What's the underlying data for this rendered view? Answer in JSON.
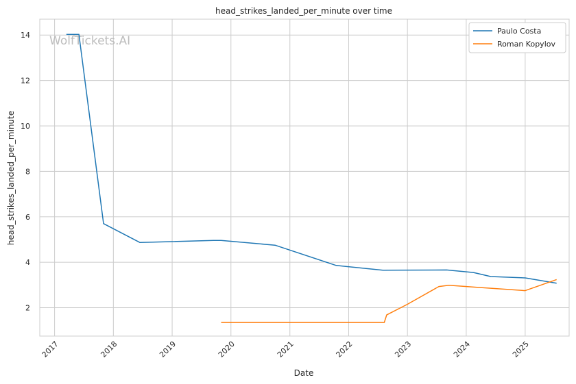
{
  "chart_data": {
    "type": "line",
    "title": "head_strikes_landed_per_minute over time",
    "xlabel": "Date",
    "ylabel": "head_strikes_landed_per_minute",
    "watermark": "WolfTickets.AI",
    "xlim": [
      "2016-10-01",
      "2025-10-01"
    ],
    "ylim": [
      0.75,
      14.7
    ],
    "x_ticks": [
      "2017-01-01",
      "2018-01-01",
      "2019-01-01",
      "2020-01-01",
      "2021-01-01",
      "2022-01-01",
      "2023-01-01",
      "2024-01-01",
      "2025-01-01"
    ],
    "x_tick_labels": [
      "2017",
      "2018",
      "2019",
      "2020",
      "2021",
      "2022",
      "2023",
      "2024",
      "2025"
    ],
    "y_ticks": [
      2,
      4,
      6,
      8,
      10,
      12,
      14
    ],
    "y_tick_labels": [
      "2",
      "4",
      "6",
      "8",
      "10",
      "12",
      "14"
    ],
    "grid": true,
    "legend_position": "top-right",
    "series": [
      {
        "name": "Paulo Costa",
        "color": "#1f77b4",
        "points": [
          {
            "x": "2017-03-15",
            "y": 14.03
          },
          {
            "x": "2017-06-01",
            "y": 14.03
          },
          {
            "x": "2017-11-01",
            "y": 5.7
          },
          {
            "x": "2018-06-15",
            "y": 4.87
          },
          {
            "x": "2019-09-15",
            "y": 4.96
          },
          {
            "x": "2019-11-01",
            "y": 4.96
          },
          {
            "x": "2020-10-01",
            "y": 4.75
          },
          {
            "x": "2021-10-15",
            "y": 3.86
          },
          {
            "x": "2022-08-01",
            "y": 3.65
          },
          {
            "x": "2023-09-01",
            "y": 3.66
          },
          {
            "x": "2024-02-15",
            "y": 3.55
          },
          {
            "x": "2024-06-01",
            "y": 3.37
          },
          {
            "x": "2025-01-01",
            "y": 3.31
          },
          {
            "x": "2025-07-15",
            "y": 3.08
          }
        ]
      },
      {
        "name": "Roman Kopylov",
        "color": "#ff7f0e",
        "points": [
          {
            "x": "2019-11-01",
            "y": 1.35
          },
          {
            "x": "2022-08-10",
            "y": 1.35
          },
          {
            "x": "2022-08-25",
            "y": 1.68
          },
          {
            "x": "2023-01-01",
            "y": 2.15
          },
          {
            "x": "2023-07-15",
            "y": 2.93
          },
          {
            "x": "2023-09-15",
            "y": 2.99
          },
          {
            "x": "2024-03-01",
            "y": 2.9
          },
          {
            "x": "2025-01-01",
            "y": 2.75
          },
          {
            "x": "2025-07-15",
            "y": 3.24
          }
        ]
      }
    ]
  }
}
